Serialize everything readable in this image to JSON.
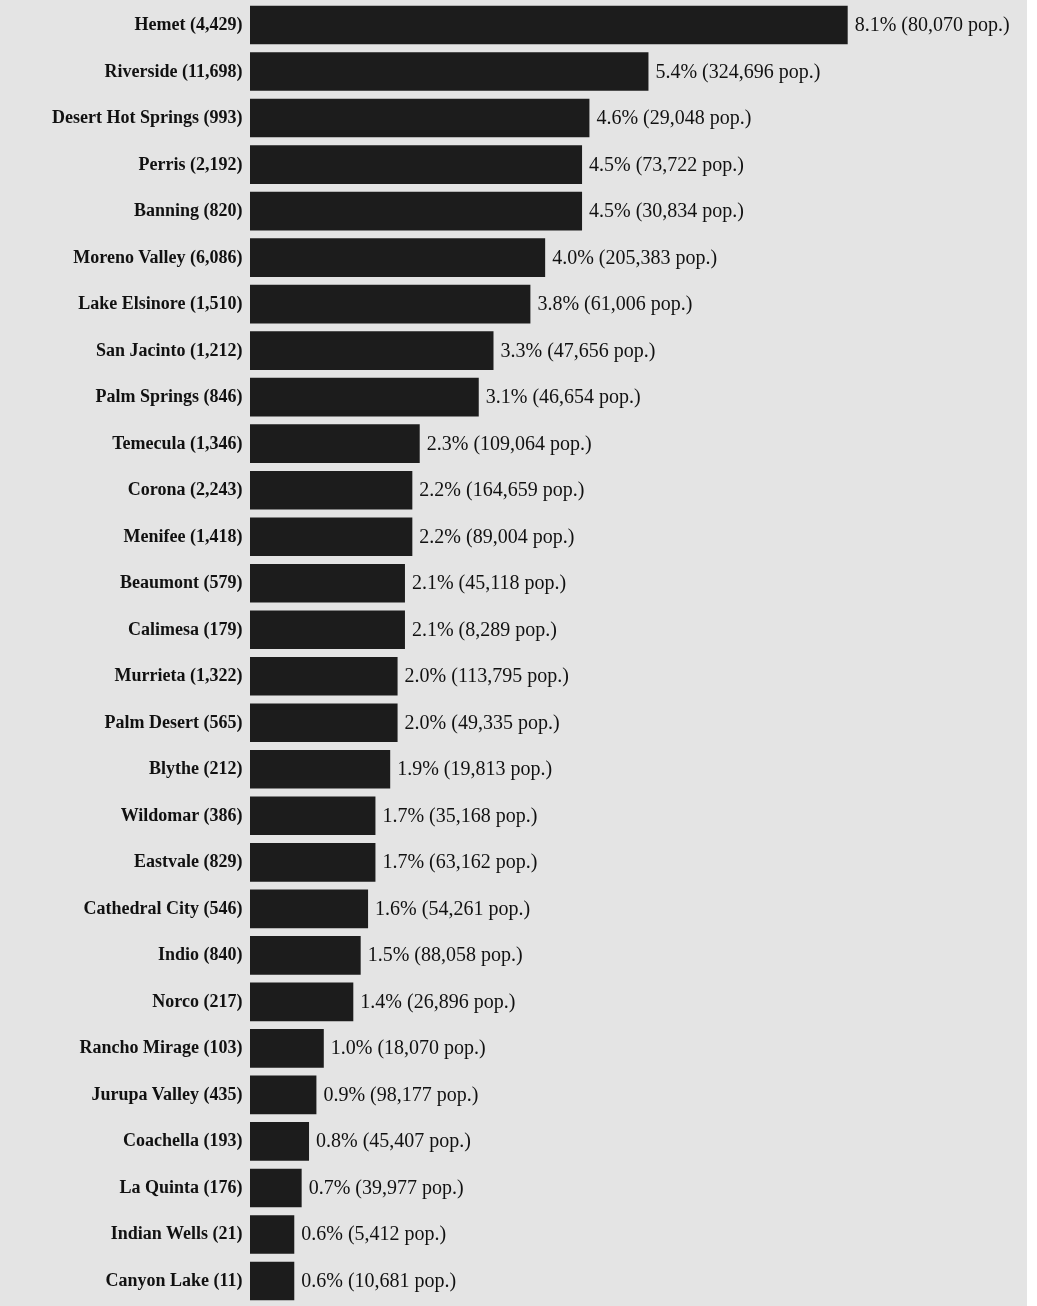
{
  "chart_data": {
    "type": "bar",
    "orientation": "horizontal",
    "tick_labels": "y",
    "categories": [
      "Hemet (4,429)",
      "Riverside (11,698)",
      "Desert Hot Springs (993)",
      "Perris (2,192)",
      "Banning (820)",
      "Moreno Valley (6,086)",
      "Lake Elsinore (1,510)",
      "San Jacinto (1,212)",
      "Palm Springs (846)",
      "Temecula (1,346)",
      "Corona (2,243)",
      "Menifee (1,418)",
      "Beaumont (579)",
      "Calimesa (179)",
      "Murrieta (1,322)",
      "Palm Desert (565)",
      "Blythe (212)",
      "Wildomar (386)",
      "Eastvale (829)",
      "Cathedral City (546)",
      "Indio (840)",
      "Norco (217)",
      "Rancho Mirage (103)",
      "Jurupa Valley (435)",
      "Coachella (193)",
      "La Quinta (176)",
      "Indian Wells (21)",
      "Canyon Lake (11)"
    ],
    "color": "#1c1c1c",
    "values": [
      8.1,
      5.4,
      4.6,
      4.5,
      4.5,
      4.0,
      3.8,
      3.3,
      3.1,
      2.3,
      2.2,
      2.2,
      2.1,
      2.1,
      2.0,
      2.0,
      1.9,
      1.7,
      1.7,
      1.6,
      1.5,
      1.4,
      1.0,
      0.9,
      0.8,
      0.7,
      0.6,
      0.6
    ],
    "value_labels": [
      "8.1% (80,070 pop.)",
      "5.4% (324,696 pop.)",
      "4.6% (29,048 pop.)",
      "4.5% (73,722 pop.)",
      "4.5% (30,834 pop.)",
      "4.0% (205,383 pop.)",
      "3.8% (61,006 pop.)",
      "3.3% (47,656 pop.)",
      "3.1% (46,654 pop.)",
      "2.3% (109,064 pop.)",
      "2.2% (164,659 pop.)",
      "2.2% (89,004 pop.)",
      "2.1% (45,118 pop.)",
      "2.1% (8,289 pop.)",
      "2.0% (113,795 pop.)",
      "2.0% (49,335 pop.)",
      "1.9% (19,813 pop.)",
      "1.7% (35,168 pop.)",
      "1.7% (63,162 pop.)",
      "1.6% (54,261 pop.)",
      "1.5% (88,058 pop.)",
      "1.4% (26,896 pop.)",
      "1.0% (18,070 pop.)",
      "0.9% (98,177 pop.)",
      "0.8% (45,407 pop.)",
      "0.7% (39,977 pop.)",
      "0.6% (5,412 pop.)",
      "0.6% (10,681 pop.)"
    ]
  }
}
